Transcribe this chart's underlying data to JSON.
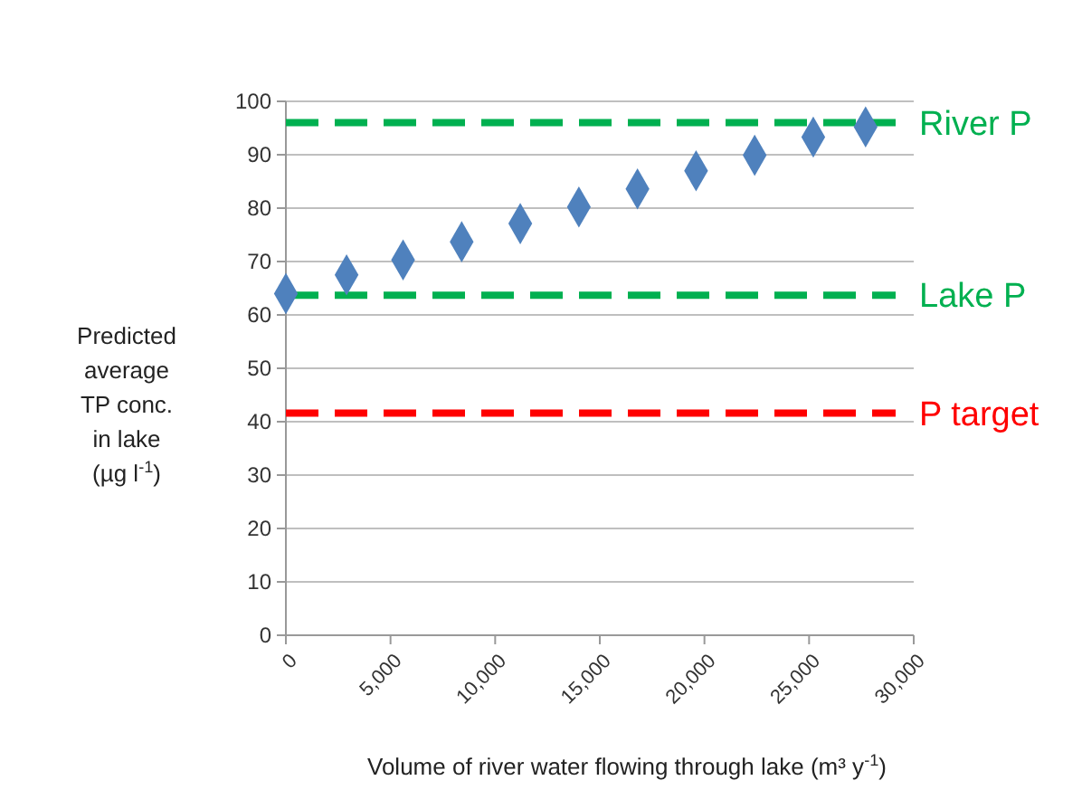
{
  "chart_data": {
    "type": "scatter",
    "xlabel": "Volume of river water flowing through lake (m³ y$^{-1}$)",
    "ylabel": "Predicted average TP conc. in lake (µg l$^{-1}$)",
    "x": [
      0,
      2900,
      5600,
      8400,
      11200,
      14000,
      16800,
      19600,
      22400,
      25200,
      27700
    ],
    "series": [
      {
        "color": "#4f81bd",
        "values": [
          64,
          67.5,
          70.3,
          73.7,
          77.1,
          80.2,
          83.6,
          87,
          89.9,
          93.3,
          95.2
        ]
      }
    ],
    "marker": "diamond",
    "grid": "y",
    "xlim": [
      0,
      30000
    ],
    "ylim": [
      0,
      100
    ],
    "xticks": [
      {
        "value": 0,
        "label": "0"
      },
      {
        "value": 5000,
        "label": "5,000"
      },
      {
        "value": 10000,
        "label": "10,000"
      },
      {
        "value": 15000,
        "label": "15,000"
      },
      {
        "value": 20000,
        "label": "20,000"
      },
      {
        "value": 25000,
        "label": "25,000"
      },
      {
        "value": 30000,
        "label": "30,000"
      }
    ],
    "yticks": [
      0,
      10,
      20,
      30,
      40,
      50,
      60,
      70,
      80,
      90,
      100
    ],
    "ref_lines": [
      {
        "axis": "y",
        "value": 96,
        "label": "River P",
        "color": "#00b050",
        "line_style": "dashed"
      },
      {
        "axis": "y",
        "value": 63.7,
        "label": "Lake P",
        "color": "#00b050",
        "line_style": "dashed"
      },
      {
        "axis": "y",
        "value": 41.6,
        "label": "P target",
        "color": "#ff0000",
        "line_style": "dashed"
      }
    ]
  }
}
